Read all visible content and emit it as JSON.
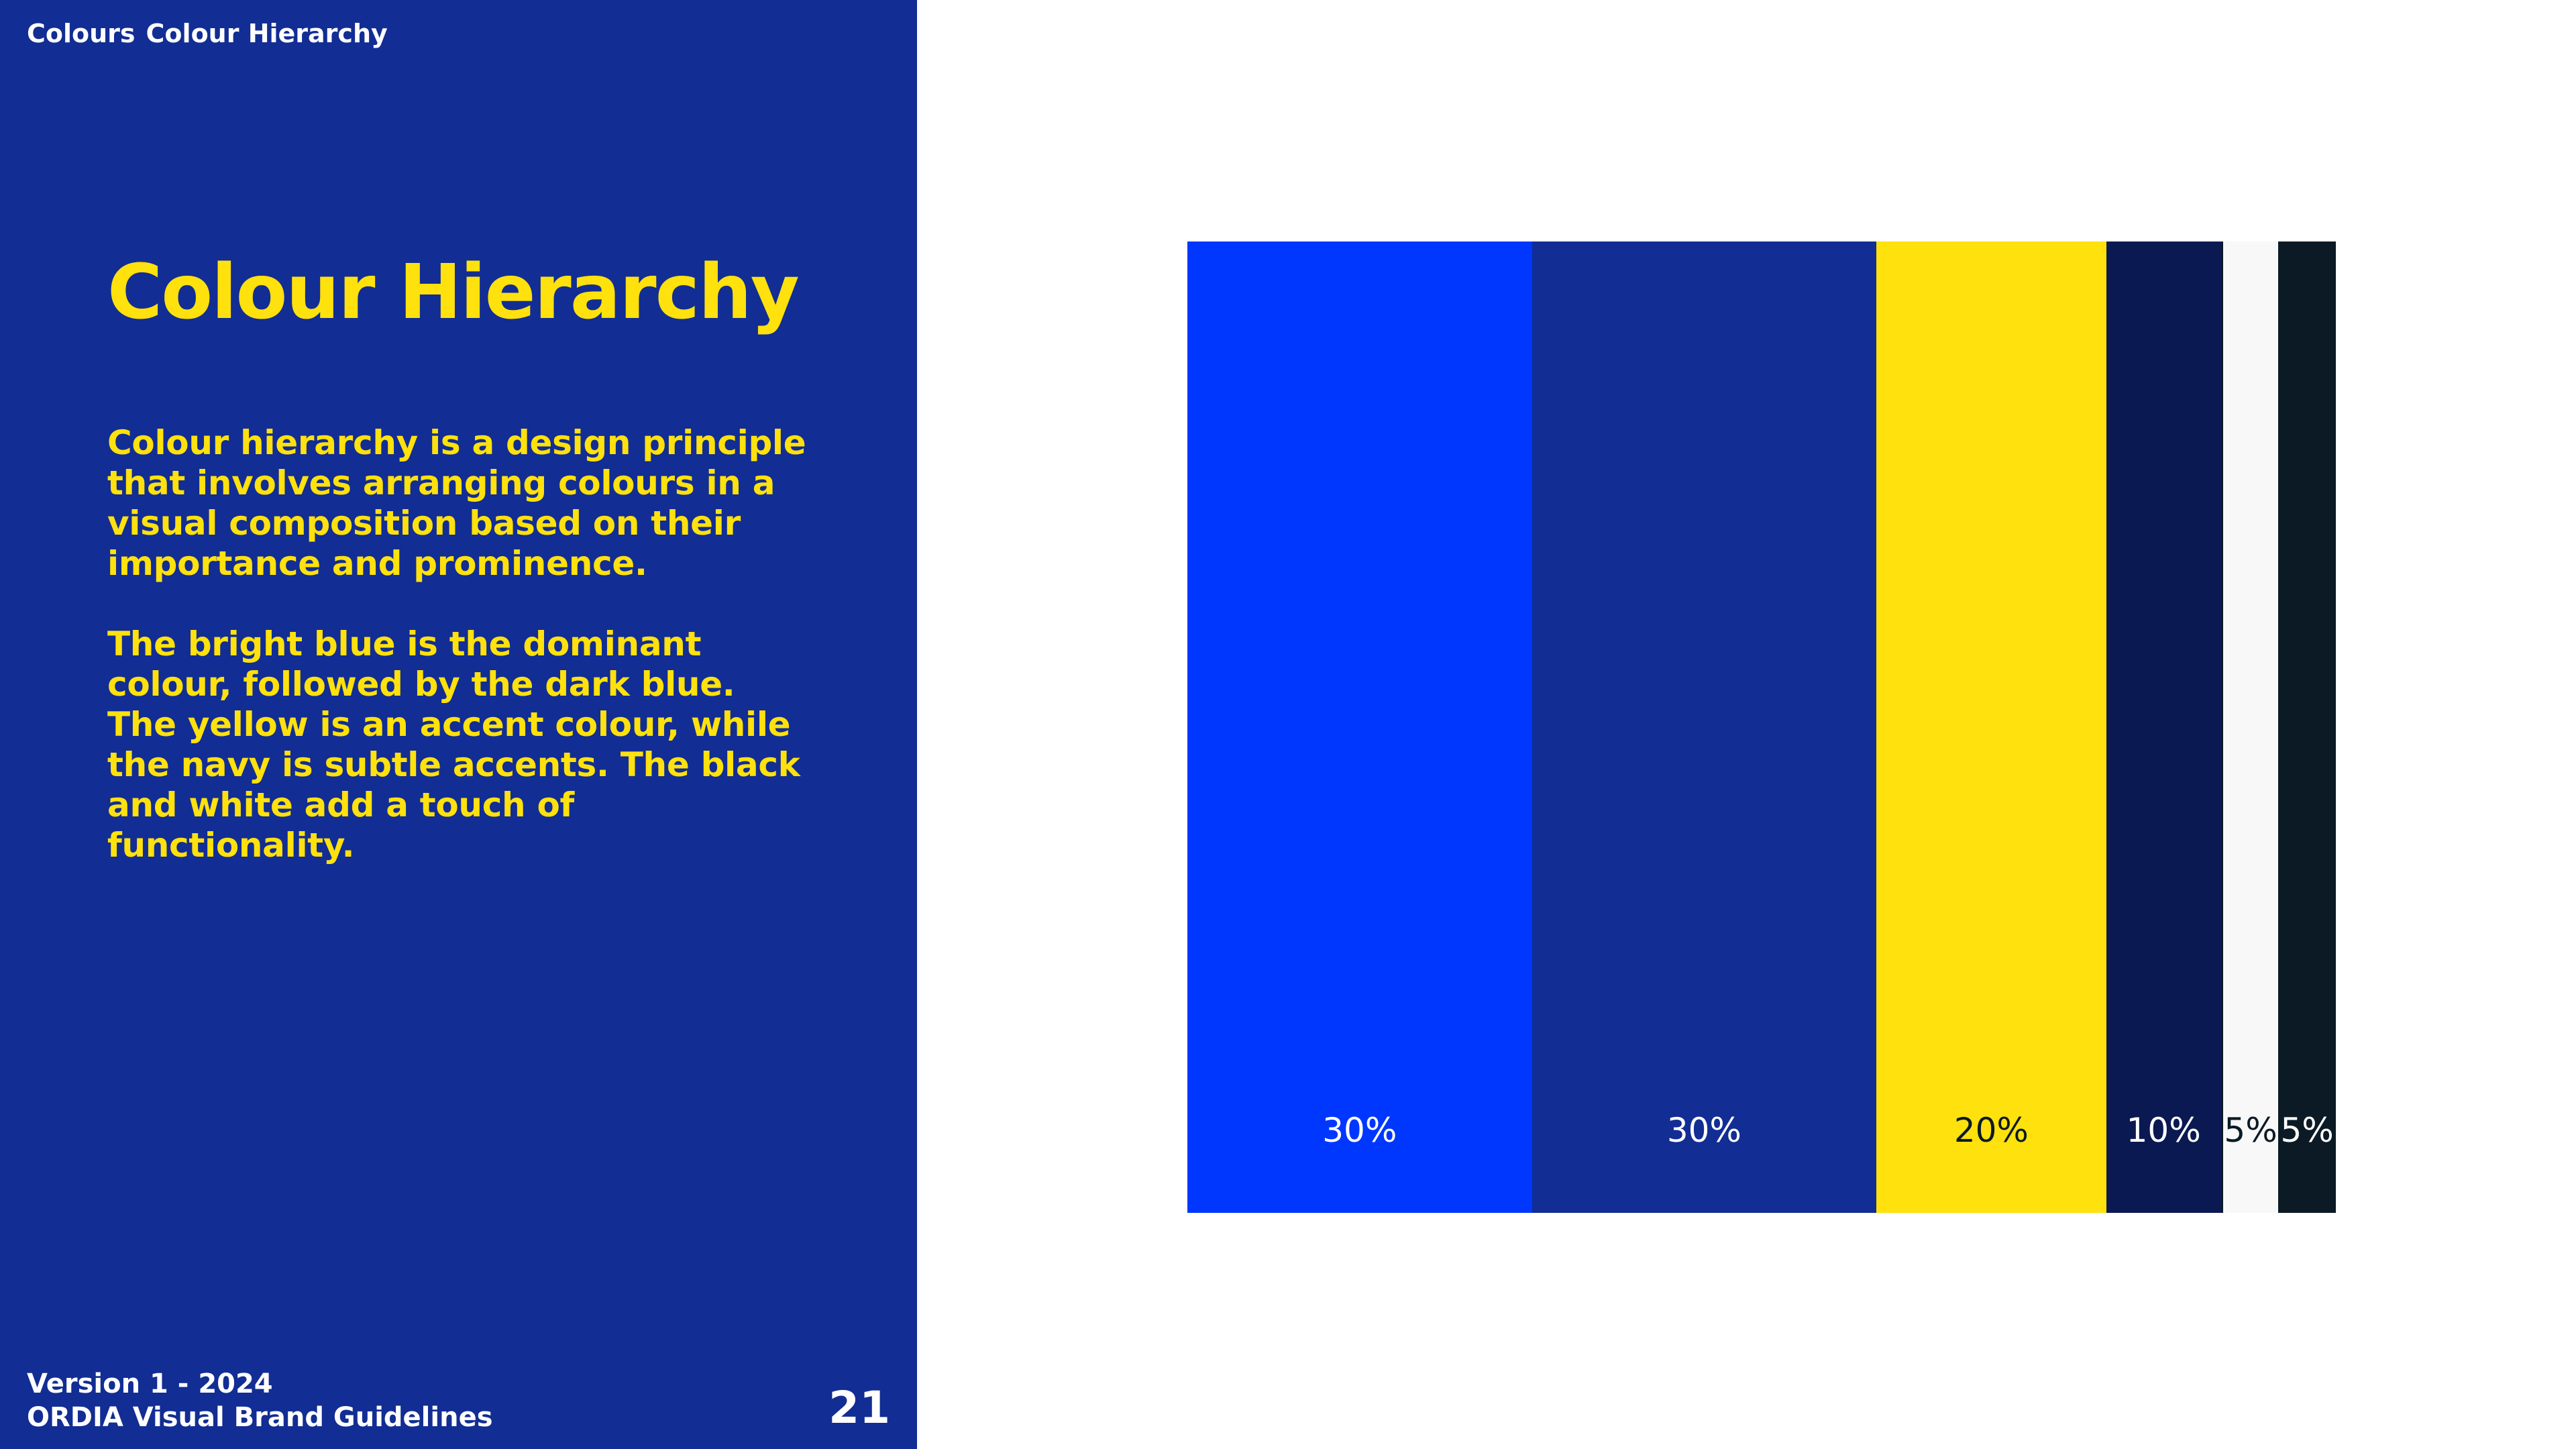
{
  "breadcrumb": {
    "section": "Colours",
    "page": "Colour Hierarchy"
  },
  "title": "Colour Hierarchy",
  "paragraphs": [
    "Colour hierarchy is a design principle that involves arranging colours in a visual composition based on their importance and prominence.",
    "The bright blue is the dominant colour, followed by the dark blue. The yellow is an accent colour, while the navy is subtle accents. The black and white add a touch of functionality."
  ],
  "footer": {
    "version": "Version 1 - 2024",
    "document": "ORDIA Visual Brand Guidelines",
    "page_number": "21"
  },
  "chart_data": {
    "type": "bar",
    "values": [
      30,
      30,
      20,
      10,
      5,
      5
    ],
    "labels": [
      "30%",
      "30%",
      "20%",
      "10%",
      "5%",
      "5%"
    ],
    "colors": [
      "#0037ff",
      "#122d93",
      "#ffe10d",
      "#0a1952",
      "#f8f8f8",
      "#0b1a24"
    ],
    "label_colors": [
      "#ffffff",
      "#ffffff",
      "#0b1a24",
      "#ffffff",
      "#0b1a24",
      "#ffffff"
    ],
    "names": [
      "bright-blue",
      "dark-blue",
      "yellow",
      "navy",
      "white",
      "black"
    ]
  }
}
